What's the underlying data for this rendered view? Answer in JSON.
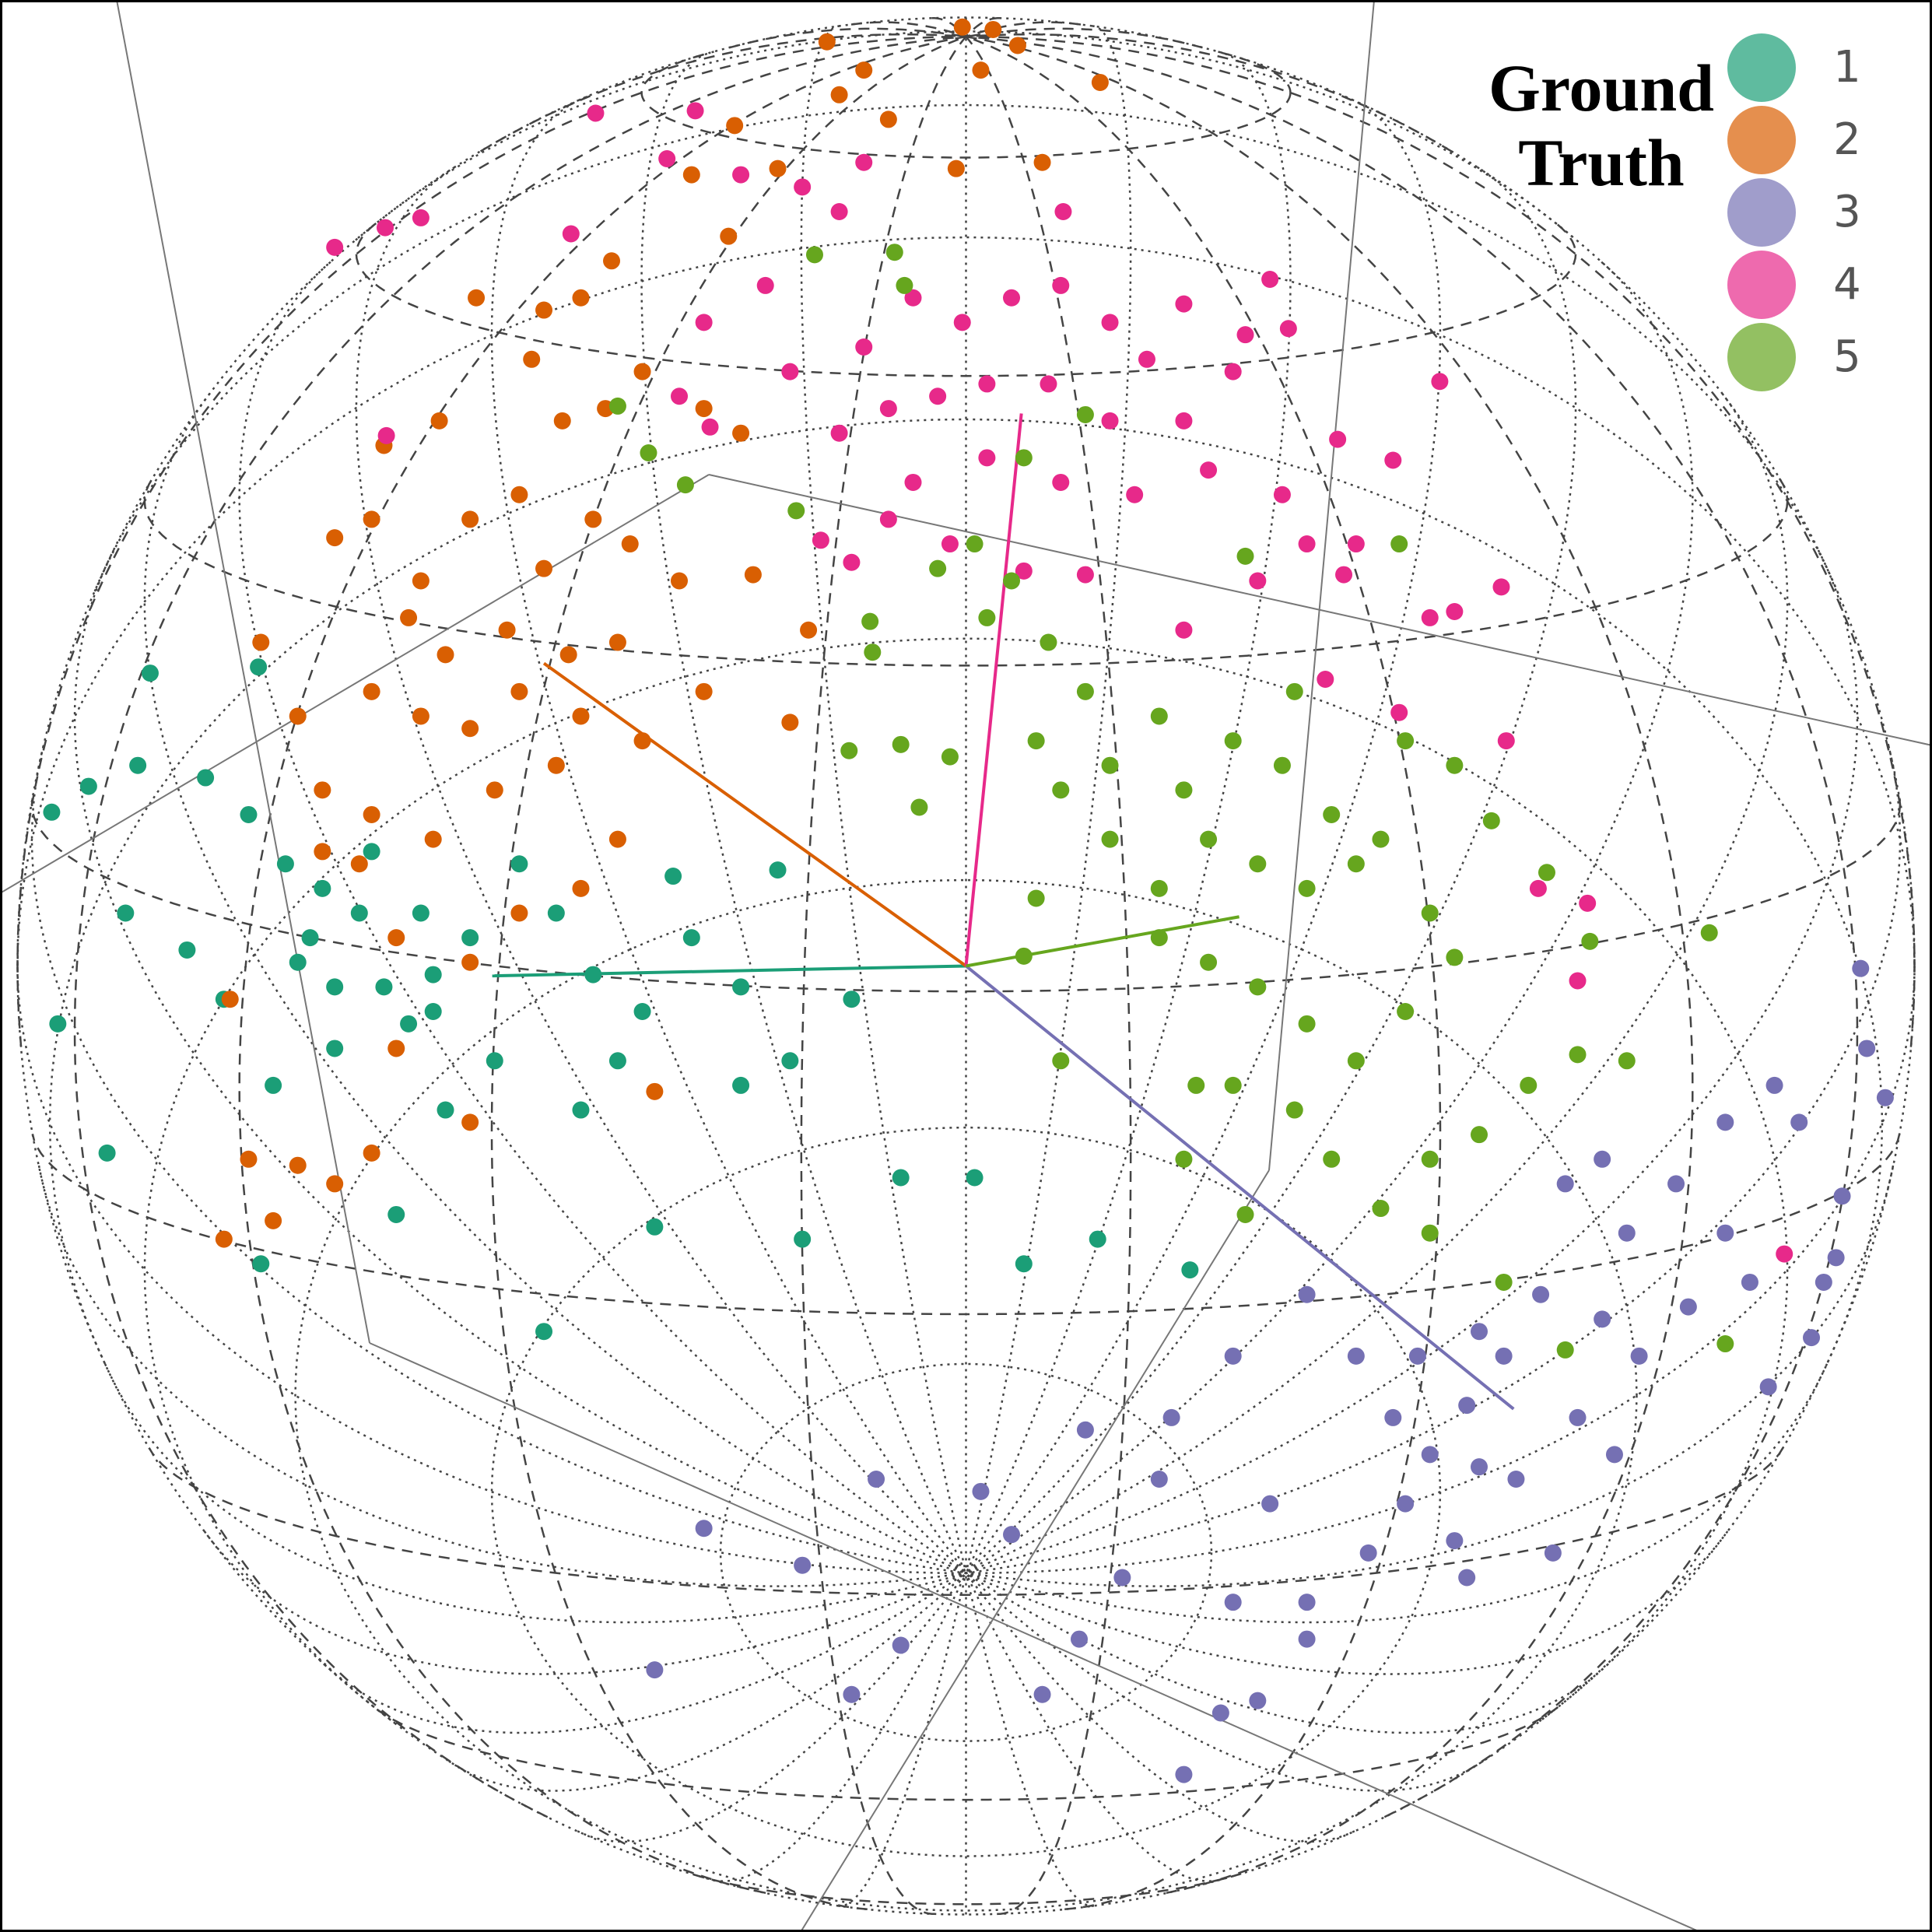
{
  "chart_data": {
    "type": "scatter",
    "legend_title": "Ground Truth",
    "legend_corner": "top-right",
    "xlim": [
      -785,
      785
    ],
    "ylim": [
      -785,
      785
    ],
    "series": [
      {
        "name": "1",
        "color": "#1b9e77",
        "legend_color": "#5fbb9f",
        "centroid": [
          -385,
          -8
        ],
        "x": [
          -663,
          -575,
          -713,
          -743,
          -673,
          -618,
          -583,
          -553,
          -523,
          -483,
          -443,
          -403,
          -363,
          -333,
          -303,
          -263,
          -223,
          -183,
          -143,
          -93,
          -153,
          -238,
          -313,
          -383,
          -433,
          -473,
          -513,
          -563,
          -603,
          -633,
          -683,
          -738,
          -698,
          -573,
          -463,
          -343,
          -253,
          -133,
          -53,
          7,
          47,
          107,
          182,
          -183,
          -283,
          -423,
          -533,
          -453,
          -493,
          -543,
          -433,
          -513
        ],
        "y": [
          238,
          243,
          146,
          125,
          163,
          153,
          123,
          83,
          63,
          93,
          43,
          23,
          83,
          43,
          -7,
          -37,
          23,
          -17,
          -77,
          -27,
          78,
          73,
          -117,
          -77,
          -37,
          -17,
          -67,
          -97,
          -27,
          13,
          43,
          -47,
          -152,
          -242,
          -202,
          -297,
          -212,
          -222,
          -172,
          -172,
          -242,
          -222,
          -247,
          -97,
          -77,
          -117,
          23,
          -47,
          43,
          3,
          -7,
          -17
        ]
      },
      {
        "name": "2",
        "color": "#d95f02",
        "legend_color": "#e58f4e",
        "centroid": [
          -343,
          246
        ],
        "x": [
          -3,
          22,
          -113,
          42,
          -83,
          12,
          -103,
          -63,
          109,
          62,
          -8,
          -188,
          -223,
          -153,
          -193,
          -288,
          -313,
          -343,
          -398,
          -353,
          -328,
          -293,
          -263,
          -213,
          -183,
          -428,
          -473,
          -483,
          -513,
          -443,
          -403,
          -363,
          -343,
          -303,
          -273,
          -233,
          -283,
          -323,
          -373,
          -423,
          -453,
          -483,
          -443,
          -403,
          -363,
          -313,
          -263,
          -213,
          -173,
          -143,
          -128,
          -543,
          -573,
          -523,
          -483,
          -433,
          -383,
          -333,
          -283,
          -313,
          -363,
          -403,
          -463,
          -493,
          -523,
          -463,
          -403,
          -483,
          -513,
          -543,
          -583,
          -603,
          -563,
          -598,
          -253
        ],
        "y": [
          763,
          761,
          751,
          748,
          728,
          728,
          708,
          688,
          718,
          653,
          648,
          683,
          643,
          648,
          593,
          573,
          543,
          533,
          543,
          493,
          443,
          453,
          483,
          453,
          433,
          443,
          423,
          363,
          348,
          313,
          363,
          383,
          323,
          363,
          343,
          313,
          263,
          253,
          273,
          253,
          283,
          223,
          203,
          193,
          223,
          203,
          183,
          223,
          318,
          198,
          273,
          203,
          263,
          143,
          123,
          103,
          143,
          163,
          103,
          63,
          43,
          3,
          23,
          83,
          93,
          -67,
          -127,
          -152,
          -177,
          -162,
          -157,
          -222,
          -207,
          -27,
          -102
        ]
      },
      {
        "name": "3",
        "color": "#7570b3",
        "legend_color": "#a09dcb",
        "centroid": [
          445,
          -360
        ],
        "x": [
          727,
          732,
          747,
          657,
          617,
          677,
          712,
          707,
          687,
          652,
          617,
          577,
          537,
          517,
          487,
          467,
          437,
          407,
          377,
          357,
          327,
          397,
          447,
          497,
          547,
          587,
          527,
          477,
          407,
          317,
          277,
          217,
          167,
          157,
          127,
          97,
          247,
          217,
          277,
          277,
          207,
          177,
          237,
          92,
          62,
          37,
          12,
          -73,
          -133,
          -213,
          -253,
          -93,
          -53,
          347,
          417,
          367,
          517,
          637,
          697,
          417
        ],
        "y": [
          -2,
          -67,
          -107,
          -97,
          -127,
          -127,
          -187,
          -237,
          -302,
          -342,
          -217,
          -177,
          -217,
          -157,
          -177,
          -267,
          -317,
          -357,
          -397,
          -437,
          -477,
          -467,
          -417,
          -367,
          -317,
          -277,
          -397,
          -477,
          -497,
          -317,
          -267,
          -317,
          -367,
          -417,
          -497,
          -377,
          -437,
          -517,
          -517,
          -547,
          -607,
          -657,
          -597,
          -547,
          -592,
          -462,
          -427,
          -417,
          -487,
          -457,
          -572,
          -592,
          -552,
          -367,
          -407,
          -317,
          -287,
          -257,
          -257,
          -297
        ]
      },
      {
        "name": "4",
        "color": "#e7298a",
        "legend_color": "#ee6aae",
        "centroid": [
          45,
          449
        ],
        "x": [
          -301,
          -220,
          -243,
          -472,
          -443,
          -513,
          -321,
          -183,
          -133,
          -83,
          -103,
          -163,
          -213,
          -143,
          -83,
          -43,
          -3,
          37,
          77,
          117,
          147,
          177,
          247,
          227,
          262,
          217,
          177,
          117,
          67,
          17,
          -23,
          -63,
          -103,
          -43,
          17,
          77,
          137,
          197,
          257,
          277,
          317,
          302,
          347,
          385,
          435,
          397,
          377,
          307,
          237,
          177,
          97,
          47,
          -13,
          -63,
          -93,
          -118,
          -208,
          -233,
          292,
          352,
          439,
          465,
          505,
          497,
          665,
          79,
          -471
        ],
        "y": [
          693,
          695,
          656,
          600,
          608,
          584,
          595,
          643,
          633,
          653,
          613,
          553,
          523,
          483,
          503,
          543,
          523,
          543,
          553,
          523,
          493,
          538,
          558,
          513,
          518,
          483,
          443,
          443,
          473,
          473,
          463,
          453,
          433,
          393,
          413,
          393,
          383,
          403,
          383,
          343,
          343,
          428,
          411,
          475,
          308,
          288,
          283,
          318,
          313,
          273,
          318,
          321,
          343,
          363,
          328,
          346,
          438,
          463,
          233,
          206,
          183,
          63,
          51,
          -12,
          -234,
          613,
          431
        ]
      },
      {
        "name": "5",
        "color": "#66a61e",
        "legend_color": "#93c062",
        "centroid": [
          222,
          40
        ],
        "x": [
          -58,
          -50,
          -123,
          -283,
          -258,
          -228,
          -138,
          -78,
          -76,
          -95,
          -53,
          -13,
          -38,
          -23,
          7,
          37,
          17,
          67,
          97,
          57,
          77,
          117,
          157,
          177,
          217,
          257,
          297,
          317,
          277,
          237,
          197,
          157,
          117,
          157,
          197,
          237,
          277,
          317,
          357,
          397,
          377,
          337,
          357,
          397,
          427,
          472,
          507,
          604,
          497,
          457,
          417,
          377,
          337,
          297,
          267,
          217,
          187,
          177,
          227,
          377,
          437,
          487,
          617,
          537,
          267,
          227,
          352,
          97,
          47,
          77,
          47,
          57
        ],
        "y": [
          580,
          553,
          578,
          455,
          417,
          391,
          370,
          280,
          255,
          175,
          180,
          170,
          129,
          323,
          343,
          313,
          283,
          263,
          223,
          183,
          143,
          163,
          203,
          143,
          183,
          163,
          123,
          83,
          63,
          83,
          103,
          63,
          103,
          23,
          3,
          -17,
          -47,
          -77,
          -37,
          7,
          43,
          103,
          183,
          163,
          118,
          76,
          20,
          27,
          -72,
          -97,
          -137,
          -157,
          -197,
          -157,
          -117,
          -97,
          -97,
          -157,
          -202,
          -217,
          -257,
          -312,
          -307,
          -77,
          223,
          333,
          343,
          448,
          413,
          -77,
          8,
          55
        ]
      }
    ]
  }
}
